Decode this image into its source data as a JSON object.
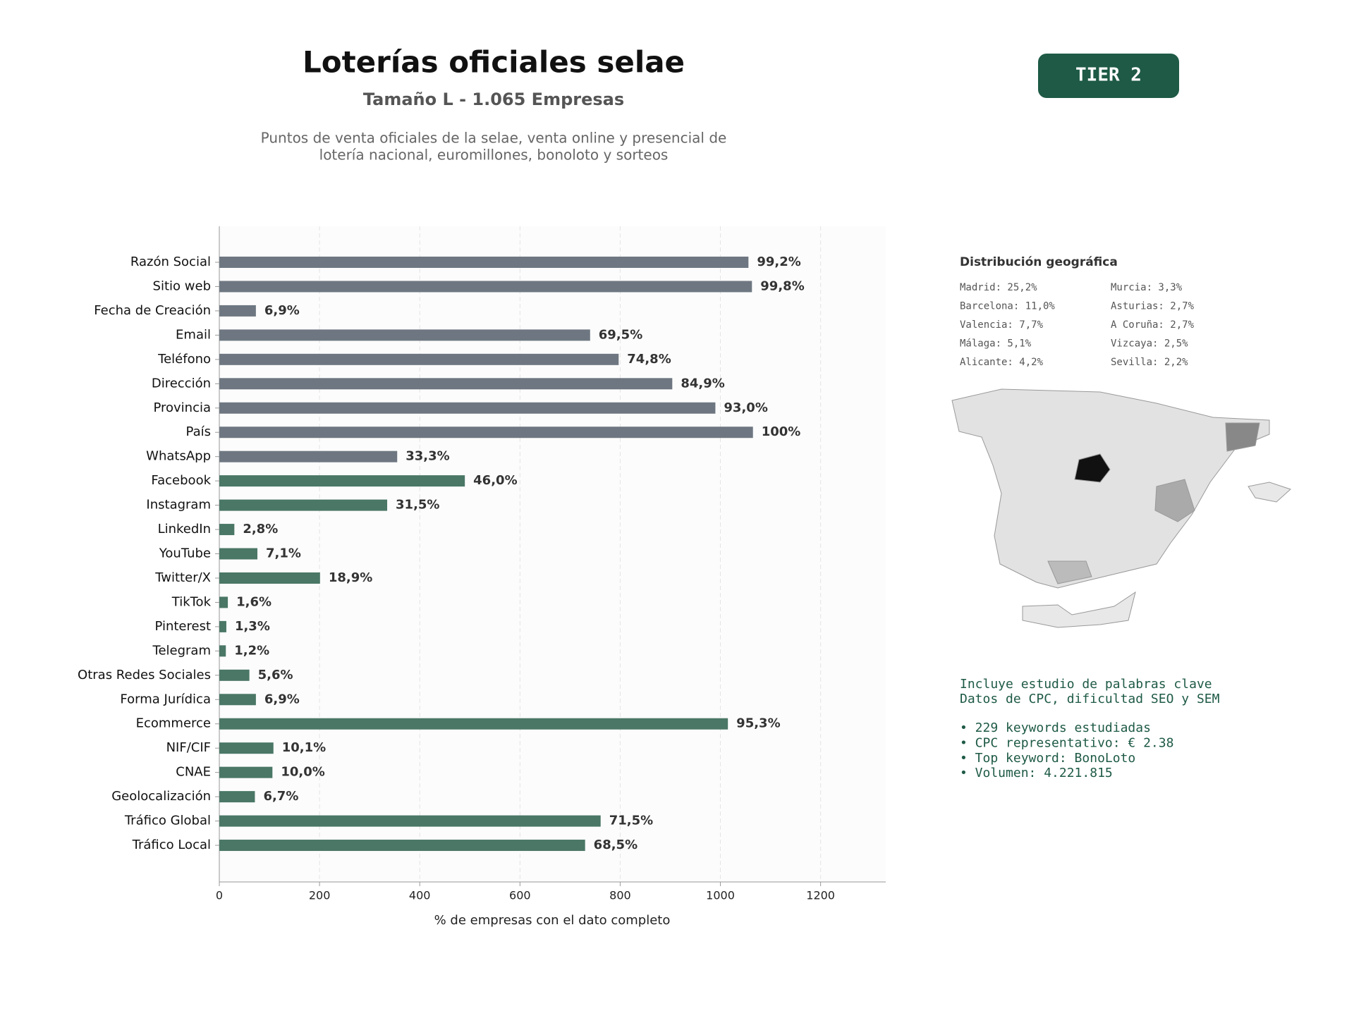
{
  "header": {
    "title": "Loterías oficiales selae",
    "subtitle": "Tamaño L - 1.065 Empresas",
    "description": [
      "Puntos de venta oficiales de la selae, venta online y presencial de",
      "lotería nacional, euromillones, bonoloto y sorteos"
    ]
  },
  "badge": "TIER 2",
  "chart_data": {
    "type": "bar",
    "orientation": "horizontal",
    "categories": [
      "Razón Social",
      "Sitio web",
      "Fecha de Creación",
      "Email",
      "Teléfono",
      "Dirección",
      "Provincia",
      "País",
      "WhatsApp",
      "Facebook",
      "Instagram",
      "LinkedIn",
      "YouTube",
      "Twitter/X",
      "TikTok",
      "Pinterest",
      "Telegram",
      "Otras Redes Sociales",
      "Forma Jurídica",
      "Ecommerce",
      "NIF/CIF",
      "CNAE",
      "Geolocalización",
      "Tráfico Global",
      "Tráfico Local"
    ],
    "values": [
      1056,
      1063,
      73,
      740,
      797,
      904,
      990,
      1065,
      355,
      490,
      335,
      30,
      76,
      201,
      17,
      14,
      13,
      60,
      73,
      1015,
      108,
      106,
      71,
      761,
      730
    ],
    "value_labels": [
      "99,2%",
      "99,8%",
      "6,9%",
      "69,5%",
      "74,8%",
      "84,9%",
      "93,0%",
      "100%",
      "33,3%",
      "46,0%",
      "31,5%",
      "2,8%",
      "7,1%",
      "18,9%",
      "1,6%",
      "1,3%",
      "1,2%",
      "5,6%",
      "6,9%",
      "95,3%",
      "10,1%",
      "10,0%",
      "6,7%",
      "71,5%",
      "68,5%"
    ],
    "colors": [
      "#6e7781",
      "#6e7781",
      "#6e7781",
      "#6e7781",
      "#6e7781",
      "#6e7781",
      "#6e7781",
      "#6e7781",
      "#6e7781",
      "#4a7766",
      "#4a7766",
      "#4a7766",
      "#4a7766",
      "#4a7766",
      "#4a7766",
      "#4a7766",
      "#4a7766",
      "#4a7766",
      "#4a7766",
      "#4a7766",
      "#4a7766",
      "#4a7766",
      "#4a7766",
      "#4a7766",
      "#4a7766"
    ],
    "xlim": [
      0,
      1330
    ],
    "xticks": [
      0,
      200,
      400,
      600,
      800,
      1000,
      1200
    ],
    "grid": true,
    "xlabel": "% de empresas con el dato completo"
  },
  "geo": {
    "title": "Distribución geográfica",
    "entries": [
      "Madrid: 25,2%",
      "Barcelona: 11,0%",
      "Valencia: 7,7%",
      "Málaga: 5,1%",
      "Alicante: 4,2%",
      "Murcia: 3,3%",
      "Asturias: 2,7%",
      "A Coruña: 2,7%",
      "Vizcaya: 2,5%",
      "Sevilla: 2,2%"
    ]
  },
  "keywords": {
    "intro": [
      "Incluye estudio de palabras clave",
      "Datos de CPC, dificultad SEO y SEM"
    ],
    "bullets": [
      "• 229 keywords estudiadas",
      "• CPC representativo: € 2.38",
      "• Top keyword: BonoLoto",
      "• Volumen: 4.221.815"
    ]
  }
}
